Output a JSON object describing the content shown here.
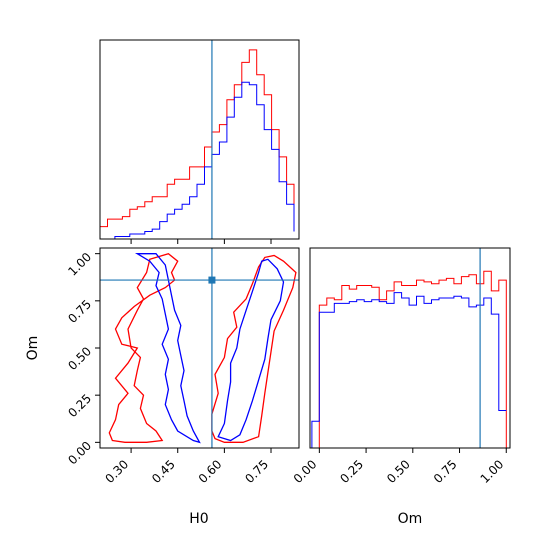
{
  "chart_data": [
    {
      "type": "histogram",
      "panel": "H0 marginal",
      "xlim": [
        0.2,
        0.84
      ],
      "truth": 0.56,
      "x_bins": [
        0.2,
        0.224,
        0.248,
        0.272,
        0.296,
        0.32,
        0.344,
        0.368,
        0.392,
        0.416,
        0.44,
        0.464,
        0.488,
        0.512,
        0.536,
        0.56,
        0.584,
        0.608,
        0.632,
        0.656,
        0.68,
        0.704,
        0.728,
        0.752,
        0.776,
        0.8,
        0.824
      ],
      "series": [
        {
          "color": "#ff0000",
          "values": [
            0.05,
            0.08,
            0.08,
            0.09,
            0.12,
            0.13,
            0.15,
            0.17,
            0.17,
            0.22,
            0.24,
            0.24,
            0.29,
            0.29,
            0.37,
            0.43,
            0.46,
            0.56,
            0.62,
            0.71,
            0.76,
            0.66,
            0.58,
            0.44,
            0.33,
            0.22,
            0.1
          ]
        },
        {
          "color": "#0000ff",
          "values": [
            0.0,
            0.0,
            0.01,
            0.01,
            0.02,
            0.02,
            0.03,
            0.04,
            0.07,
            0.1,
            0.12,
            0.14,
            0.17,
            0.22,
            0.29,
            0.34,
            0.39,
            0.49,
            0.57,
            0.63,
            0.62,
            0.54,
            0.44,
            0.36,
            0.23,
            0.14,
            0.03
          ]
        }
      ],
      "x_ticks": [
        "0.30",
        "0.45",
        "0.60",
        "0.75"
      ]
    },
    {
      "type": "contour",
      "panel": "Om vs H0",
      "xlabel": "H0",
      "ylabel": "Om",
      "xlim": [
        0.2,
        0.84
      ],
      "ylim": [
        -0.03,
        1.03
      ],
      "truth": {
        "x": 0.56,
        "y": 0.86
      },
      "x_ticks": [
        "0.30",
        "0.45",
        "0.60",
        "0.75"
      ],
      "y_ticks": [
        "0.00",
        "0.25",
        "0.50",
        "0.75",
        "1.00"
      ],
      "series": [
        {
          "color": "#ff0000",
          "contours": [
            [
              [
                0.24,
                0.01
              ],
              [
                0.28,
                0.0
              ],
              [
                0.35,
                0.0
              ],
              [
                0.4,
                0.01
              ],
              [
                0.38,
                0.06
              ],
              [
                0.35,
                0.1
              ],
              [
                0.33,
                0.18
              ],
              [
                0.34,
                0.25
              ],
              [
                0.31,
                0.3
              ],
              [
                0.32,
                0.38
              ],
              [
                0.33,
                0.45
              ],
              [
                0.3,
                0.5
              ],
              [
                0.29,
                0.6
              ],
              [
                0.32,
                0.7
              ],
              [
                0.34,
                0.76
              ],
              [
                0.32,
                0.82
              ],
              [
                0.35,
                0.9
              ],
              [
                0.36,
                0.97
              ],
              [
                0.42,
                1.0
              ],
              [
                0.45,
                0.96
              ],
              [
                0.43,
                0.9
              ],
              [
                0.44,
                0.86
              ],
              [
                0.41,
                0.82
              ],
              [
                0.36,
                0.78
              ],
              [
                0.31,
                0.72
              ],
              [
                0.27,
                0.66
              ],
              [
                0.25,
                0.6
              ],
              [
                0.27,
                0.52
              ],
              [
                0.32,
                0.5
              ],
              [
                0.29,
                0.42
              ],
              [
                0.25,
                0.34
              ],
              [
                0.29,
                0.26
              ],
              [
                0.26,
                0.2
              ],
              [
                0.25,
                0.12
              ],
              [
                0.23,
                0.05
              ],
              [
                0.24,
                0.01
              ]
            ],
            [
              [
                0.56,
                0.06
              ],
              [
                0.56,
                0.15
              ],
              [
                0.58,
                0.26
              ],
              [
                0.57,
                0.36
              ],
              [
                0.6,
                0.45
              ],
              [
                0.61,
                0.55
              ],
              [
                0.64,
                0.61
              ],
              [
                0.63,
                0.69
              ],
              [
                0.67,
                0.76
              ],
              [
                0.69,
                0.84
              ],
              [
                0.71,
                0.93
              ],
              [
                0.73,
                0.98
              ],
              [
                0.76,
                0.99
              ],
              [
                0.79,
                0.96
              ],
              [
                0.83,
                0.9
              ],
              [
                0.82,
                0.82
              ],
              [
                0.79,
                0.7
              ],
              [
                0.76,
                0.59
              ],
              [
                0.75,
                0.48
              ],
              [
                0.74,
                0.37
              ],
              [
                0.73,
                0.26
              ],
              [
                0.72,
                0.14
              ],
              [
                0.71,
                0.03
              ],
              [
                0.66,
                0.0
              ],
              [
                0.6,
                0.0
              ],
              [
                0.57,
                0.02
              ],
              [
                0.56,
                0.06
              ]
            ]
          ]
        },
        {
          "color": "#0000ff",
          "contours": [
            [
              [
                0.32,
                1.0
              ],
              [
                0.36,
                0.96
              ],
              [
                0.39,
                0.9
              ],
              [
                0.38,
                0.83
              ],
              [
                0.4,
                0.76
              ],
              [
                0.41,
                0.68
              ],
              [
                0.42,
                0.6
              ],
              [
                0.4,
                0.52
              ],
              [
                0.42,
                0.44
              ],
              [
                0.41,
                0.36
              ],
              [
                0.42,
                0.28
              ],
              [
                0.41,
                0.2
              ],
              [
                0.43,
                0.12
              ],
              [
                0.45,
                0.06
              ],
              [
                0.5,
                0.01
              ],
              [
                0.52,
                0.0
              ],
              [
                0.5,
                0.06
              ],
              [
                0.48,
                0.14
              ],
              [
                0.47,
                0.22
              ],
              [
                0.46,
                0.3
              ],
              [
                0.47,
                0.38
              ],
              [
                0.46,
                0.46
              ],
              [
                0.45,
                0.54
              ],
              [
                0.46,
                0.62
              ],
              [
                0.44,
                0.7
              ],
              [
                0.43,
                0.78
              ],
              [
                0.42,
                0.86
              ],
              [
                0.41,
                0.94
              ],
              [
                0.38,
                1.0
              ]
            ],
            [
              [
                0.58,
                0.03
              ],
              [
                0.6,
                0.1
              ],
              [
                0.61,
                0.22
              ],
              [
                0.62,
                0.32
              ],
              [
                0.62,
                0.42
              ],
              [
                0.64,
                0.5
              ],
              [
                0.65,
                0.6
              ],
              [
                0.67,
                0.7
              ],
              [
                0.69,
                0.8
              ],
              [
                0.71,
                0.9
              ],
              [
                0.72,
                0.96
              ],
              [
                0.74,
                0.97
              ],
              [
                0.77,
                0.92
              ],
              [
                0.79,
                0.85
              ],
              [
                0.78,
                0.75
              ],
              [
                0.75,
                0.65
              ],
              [
                0.74,
                0.55
              ],
              [
                0.73,
                0.44
              ],
              [
                0.71,
                0.33
              ],
              [
                0.69,
                0.22
              ],
              [
                0.67,
                0.12
              ],
              [
                0.65,
                0.04
              ],
              [
                0.62,
                0.01
              ],
              [
                0.58,
                0.03
              ]
            ]
          ]
        }
      ]
    },
    {
      "type": "histogram",
      "panel": "Om marginal",
      "xlabel": "Om",
      "xlim": [
        -0.05,
        1.02
      ],
      "truth": 0.86,
      "x_bins": [
        -0.04,
        0.0,
        0.04,
        0.08,
        0.12,
        0.16,
        0.2,
        0.24,
        0.28,
        0.32,
        0.36,
        0.4,
        0.44,
        0.48,
        0.52,
        0.56,
        0.6,
        0.64,
        0.68,
        0.72,
        0.76,
        0.8,
        0.84,
        0.88,
        0.92,
        0.96,
        1.0
      ],
      "x_ticks": [
        "0.00",
        "0.25",
        "0.50",
        "0.75",
        "1.00"
      ],
      "series": [
        {
          "color": "#ff0000",
          "values": [
            0.0,
            0.8,
            0.84,
            0.83,
            0.91,
            0.89,
            0.91,
            0.91,
            0.9,
            0.83,
            0.88,
            0.93,
            0.91,
            0.91,
            0.94,
            0.93,
            0.92,
            0.94,
            0.95,
            0.92,
            0.96,
            0.97,
            0.92,
            0.99,
            0.88,
            0.94,
            0.0
          ]
        },
        {
          "color": "#0000ff",
          "values": [
            0.15,
            0.76,
            0.76,
            0.81,
            0.81,
            0.82,
            0.83,
            0.82,
            0.83,
            0.82,
            0.81,
            0.87,
            0.84,
            0.8,
            0.85,
            0.81,
            0.83,
            0.84,
            0.84,
            0.85,
            0.84,
            0.79,
            0.8,
            0.84,
            0.75,
            0.21,
            0.21
          ]
        }
      ]
    }
  ]
}
